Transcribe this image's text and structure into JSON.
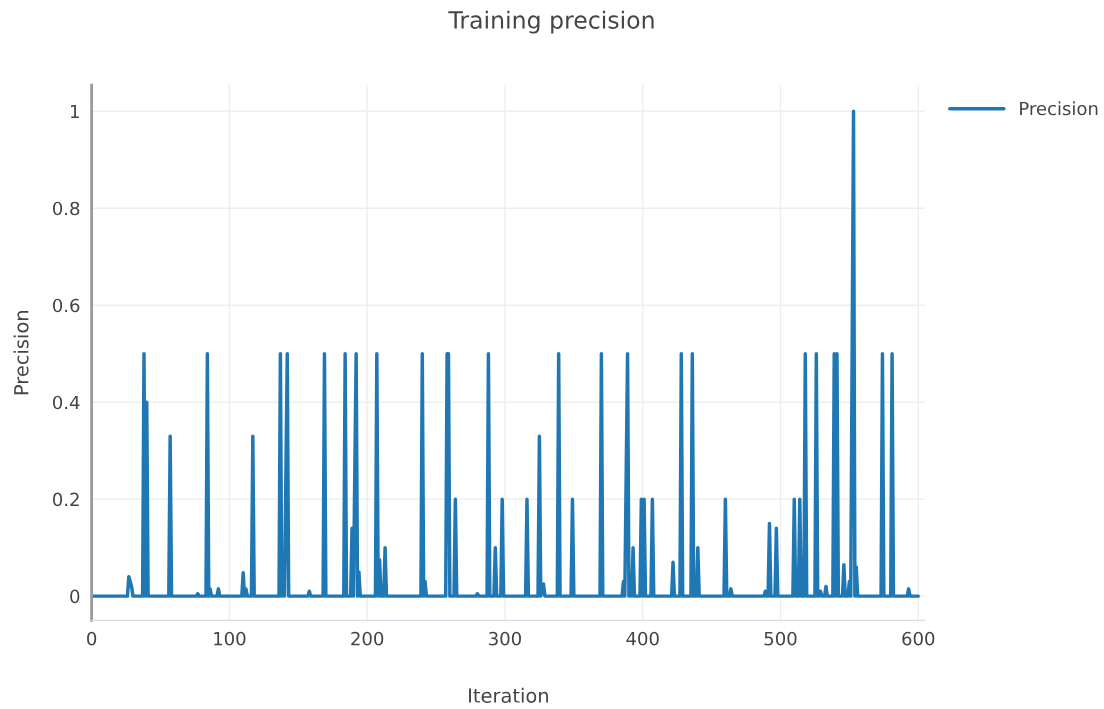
{
  "chart_data": {
    "type": "line",
    "title": "Training precision",
    "xlabel": "Iteration",
    "ylabel": "Precision",
    "xlim": [
      0,
      605
    ],
    "xticks": [
      0,
      100,
      200,
      300,
      400,
      500,
      600
    ],
    "ylim": [
      -0.05,
      1.054
    ],
    "yticks": [
      0,
      0.2,
      0.4,
      0.6,
      0.8,
      1
    ],
    "grid": true,
    "legend": "top right",
    "marker": "none",
    "line_style": "solid",
    "series": [
      {
        "name": "Precision",
        "color": "#1f77b4",
        "x": [
          0,
          26,
          27,
          28,
          29,
          30,
          37,
          38,
          39,
          40,
          41,
          56,
          57,
          58,
          76,
          77,
          78,
          83,
          84,
          85,
          86,
          87,
          91,
          92,
          93,
          109,
          110,
          111,
          112,
          113,
          116,
          117,
          118,
          136,
          137,
          138,
          139,
          140,
          142,
          143,
          157,
          158,
          159,
          168,
          169,
          170,
          183,
          184,
          185,
          188,
          189,
          190,
          192,
          193,
          194,
          195,
          206,
          207,
          208,
          209,
          210,
          212,
          213,
          214,
          239,
          240,
          241,
          242,
          243,
          257,
          258,
          259,
          260,
          263,
          264,
          265,
          279,
          280,
          281,
          287,
          288,
          289,
          292,
          293,
          294,
          297,
          298,
          299,
          315,
          316,
          317,
          324,
          325,
          326,
          328,
          329,
          338,
          339,
          340,
          348,
          349,
          350,
          369,
          370,
          371,
          385,
          386,
          387,
          389,
          390,
          391,
          392,
          393,
          394,
          398,
          399,
          400,
          401,
          402,
          406,
          407,
          408,
          421,
          422,
          423,
          427,
          428,
          429,
          435,
          436,
          437,
          439,
          440,
          441,
          459,
          460,
          461,
          463,
          464,
          465,
          488,
          489,
          490,
          491,
          492,
          493,
          496,
          497,
          498,
          509,
          510,
          511,
          513,
          514,
          515,
          517,
          518,
          519,
          525,
          526,
          527,
          528,
          529,
          530,
          532,
          533,
          534,
          538,
          539,
          540,
          541,
          542,
          545,
          546,
          547,
          549,
          550,
          551,
          553,
          554,
          555,
          556,
          573,
          574,
          575,
          580,
          581,
          582,
          592,
          593,
          594,
          600
        ],
        "values": [
          0,
          0,
          0.04,
          0.03,
          0.02,
          0,
          0,
          0.5,
          0,
          0.4,
          0,
          0,
          0.33,
          0,
          0,
          0.005,
          0,
          0,
          0.5,
          0,
          0.015,
          0,
          0,
          0.015,
          0,
          0,
          0.048,
          0,
          0.015,
          0,
          0,
          0.33,
          0,
          0,
          0.5,
          0,
          0.08,
          0,
          0.5,
          0,
          0,
          0.01,
          0,
          0,
          0.5,
          0,
          0,
          0.5,
          0,
          0,
          0.14,
          0,
          0.5,
          0,
          0.05,
          0,
          0,
          0.5,
          0,
          0.075,
          0,
          0,
          0.1,
          0,
          0,
          0.5,
          0,
          0.03,
          0,
          0,
          0.5,
          0.5,
          0,
          0,
          0.2,
          0,
          0,
          0.005,
          0,
          0,
          0.5,
          0,
          0,
          0.1,
          0,
          0,
          0.2,
          0,
          0,
          0.2,
          0,
          0,
          0.33,
          0,
          0.025,
          0,
          0,
          0.5,
          0,
          0,
          0.2,
          0,
          0,
          0.5,
          0,
          0,
          0.03,
          0,
          0.5,
          0,
          0.04,
          0,
          0.1,
          0,
          0,
          0.2,
          0,
          0.2,
          0,
          0,
          0.2,
          0,
          0,
          0.07,
          0,
          0,
          0.5,
          0,
          0,
          0.5,
          0,
          0,
          0.1,
          0,
          0,
          0.2,
          0,
          0,
          0.015,
          0,
          0,
          0.01,
          0,
          0,
          0.15,
          0,
          0,
          0.14,
          0,
          0,
          0.2,
          0,
          0,
          0.2,
          0,
          0,
          0.5,
          0,
          0,
          0.5,
          0,
          0,
          0.01,
          0,
          0,
          0.02,
          0,
          0,
          0.5,
          0,
          0.5,
          0,
          0,
          0.065,
          0,
          0,
          0.03,
          0,
          1,
          0,
          0.06,
          0,
          0,
          0.5,
          0,
          0,
          0.5,
          0,
          0,
          0.015,
          0,
          0
        ]
      }
    ]
  }
}
